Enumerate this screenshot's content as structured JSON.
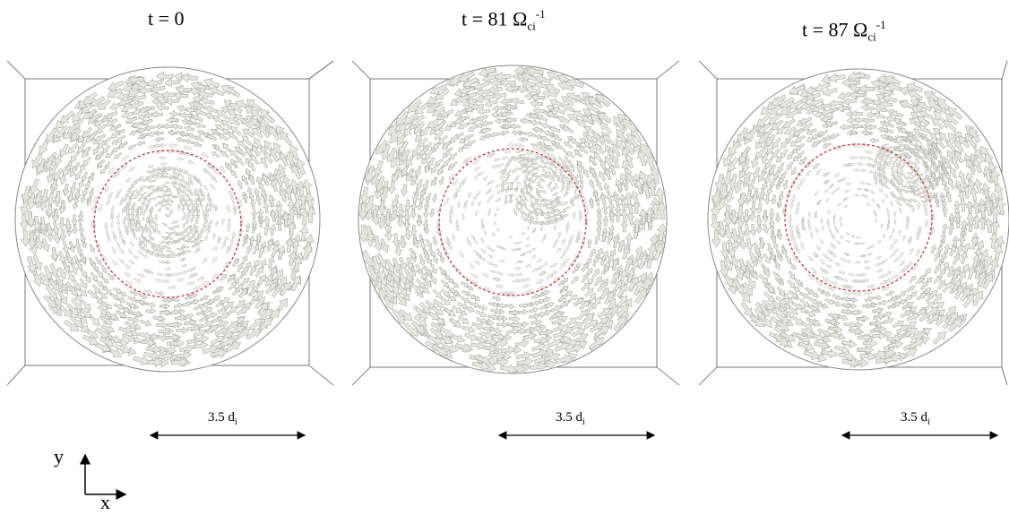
{
  "panels": [
    {
      "title_prefix": "t = 0",
      "title_symbol": "",
      "title_sub": "",
      "title_sup": "",
      "scale_value": "3.5 d",
      "scale_sub": "i"
    },
    {
      "title_prefix": "t = 81 ",
      "title_symbol": "Ω",
      "title_sub": "ci",
      "title_sup": "-1",
      "scale_value": "3.5 d",
      "scale_sub": "i"
    },
    {
      "title_prefix": "t = 87 ",
      "title_symbol": "Ω",
      "title_sub": "ci",
      "title_sup": "-1",
      "scale_value": "3.5 d",
      "scale_sub": "i"
    }
  ],
  "axes": {
    "y": "y",
    "x": "x"
  },
  "colors": {
    "arrow_fill": "#e6e6e1",
    "arrow_stroke": "#9a9a94",
    "dashed_circle": "#d42a2a",
    "box": "#555555"
  }
}
